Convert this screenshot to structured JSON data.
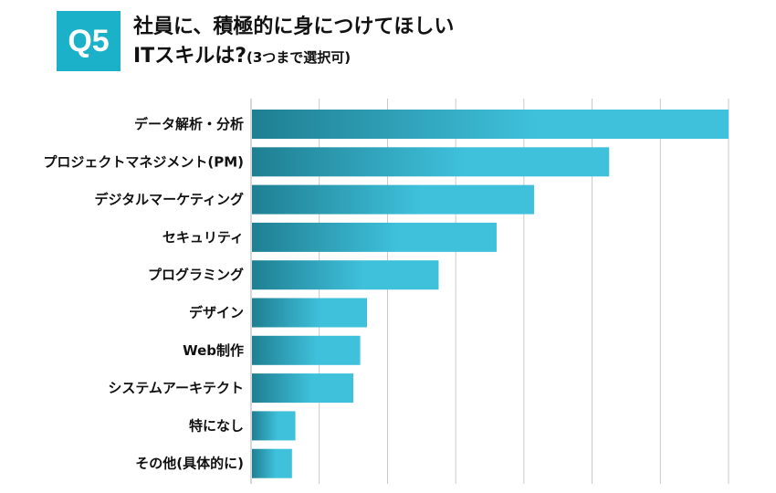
{
  "header": {
    "badge": "Q5",
    "title_line1": "社員に、積極的に身につけてほしい",
    "title_line2": "ITスキルは?",
    "title_note": "(3つまで選択可)"
  },
  "colors": {
    "accent": "#1ab1c9",
    "bar_dark": "#1f7f92",
    "bar_light": "#3fc1dc",
    "grid": "#bdbdbd"
  },
  "chart_data": {
    "type": "bar",
    "orientation": "horizontal",
    "categories": [
      "データ解析・分析",
      "プロジェクトマネジメント(PM)",
      "デジタルマーケティング",
      "セキュリティ",
      "プログラミング",
      "デザイン",
      "Web制作",
      "システムアーキテクト",
      "特になし",
      "その他(具体的に)"
    ],
    "values": [
      70,
      52.5,
      41.5,
      36,
      27.5,
      17,
      16,
      15,
      6.5,
      6
    ],
    "xlim": [
      0,
      70
    ],
    "grid": true,
    "title": "",
    "xlabel": "",
    "ylabel": ""
  }
}
